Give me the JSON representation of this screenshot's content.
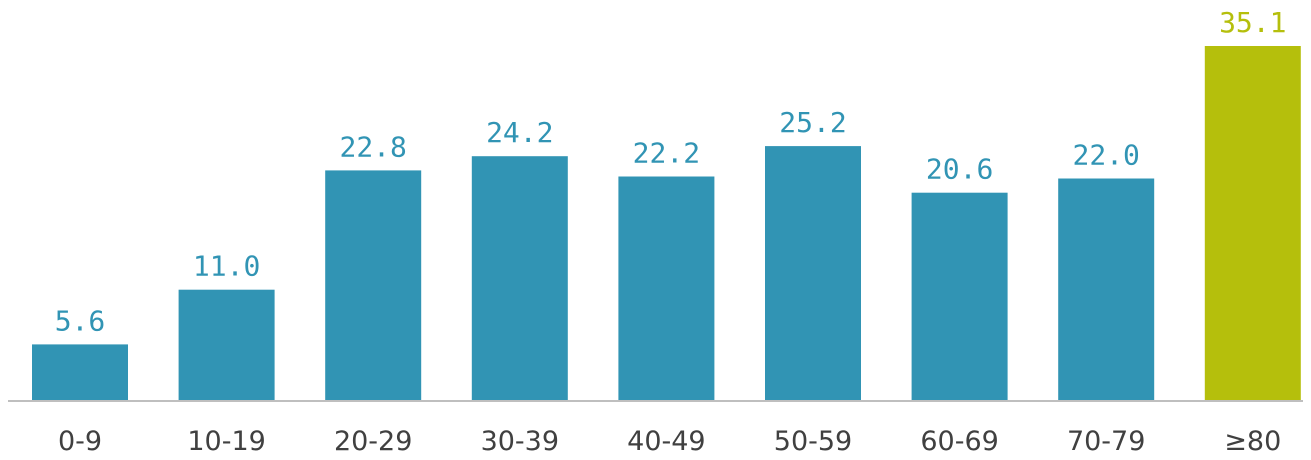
{
  "chart_data": {
    "type": "bar",
    "title": "",
    "xlabel": "",
    "ylabel": "",
    "categories": [
      "0-9",
      "10-19",
      "20-29",
      "30-39",
      "40-49",
      "50-59",
      "60-69",
      "70-79",
      "≥80"
    ],
    "values": [
      5.6,
      11.0,
      22.8,
      24.2,
      22.2,
      25.2,
      20.6,
      22.0,
      35.1
    ],
    "value_labels": [
      "5.6",
      "11.0",
      "22.8",
      "24.2",
      "22.2",
      "25.2",
      "20.6",
      "22.0",
      "35.1"
    ],
    "ylim": [
      0,
      35.1
    ],
    "grid": false,
    "legend": "none",
    "colors": {
      "default_bar": "#3194b4",
      "highlight_bar": "#b5bf0c",
      "baseline": "#bfbfbf",
      "category_text": "#404040"
    },
    "highlight_index": 8
  }
}
